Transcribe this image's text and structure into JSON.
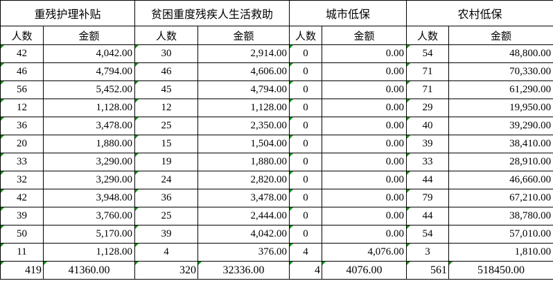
{
  "table": {
    "groups": [
      {
        "title": "重残护理补贴"
      },
      {
        "title": "贫困重度残疾人生活救助"
      },
      {
        "title": "城市低保"
      },
      {
        "title": "农村低保"
      }
    ],
    "subheaders": {
      "people": "人数",
      "amount": "金额"
    },
    "rows": [
      [
        "42",
        "4,042.00",
        "30",
        "2,914.00",
        "0",
        "0.00",
        "54",
        "48,800.00"
      ],
      [
        "46",
        "4,794.00",
        "46",
        "4,606.00",
        "0",
        "0.00",
        "71",
        "70,330.00"
      ],
      [
        "56",
        "5,452.00",
        "45",
        "4,794.00",
        "0",
        "0.00",
        "71",
        "61,290.00"
      ],
      [
        "12",
        "1,128.00",
        "12",
        "1,128.00",
        "0",
        "0.00",
        "29",
        "19,950.00"
      ],
      [
        "36",
        "3,478.00",
        "25",
        "2,350.00",
        "0",
        "0.00",
        "40",
        "39,290.00"
      ],
      [
        "20",
        "1,880.00",
        "15",
        "1,504.00",
        "0",
        "0.00",
        "39",
        "38,410.00"
      ],
      [
        "33",
        "3,290.00",
        "19",
        "1,880.00",
        "0",
        "0.00",
        "33",
        "28,910.00"
      ],
      [
        "32",
        "3,290.00",
        "24",
        "2,820.00",
        "0",
        "0.00",
        "44",
        "46,660.00"
      ],
      [
        "42",
        "3,948.00",
        "36",
        "3,478.00",
        "0",
        "0.00",
        "79",
        "67,210.00"
      ],
      [
        "39",
        "3,760.00",
        "25",
        "2,444.00",
        "0",
        "0.00",
        "44",
        "38,780.00"
      ],
      [
        "50",
        "5,170.00",
        "39",
        "4,042.00",
        "0",
        "0.00",
        "54",
        "57,010.00"
      ],
      [
        "11",
        "1,128.00",
        "4",
        "376.00",
        "4",
        "4,076.00",
        "3",
        "1,810.00"
      ]
    ],
    "totals": [
      "419",
      "41360.00",
      "320",
      "32336.00",
      "4",
      "4076.00",
      "561",
      "518450.00"
    ]
  },
  "colors": {
    "border": "#000000",
    "background": "#ffffff",
    "text": "#000000",
    "error_indicator": "#009a00"
  }
}
